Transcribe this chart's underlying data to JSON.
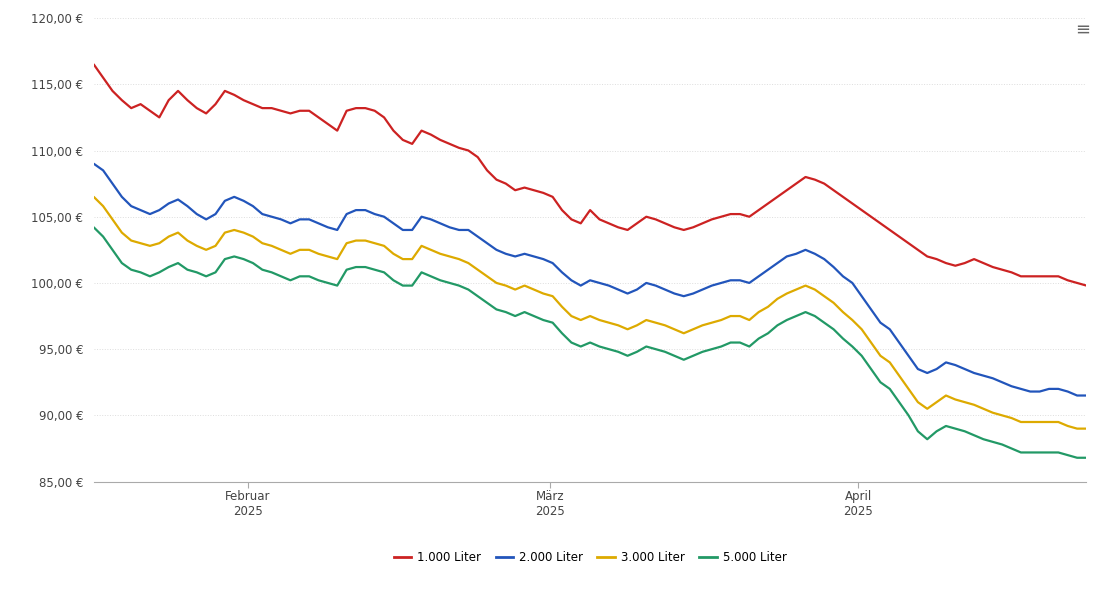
{
  "background_color": "#ffffff",
  "grid_color": "#dddddd",
  "y_min": 85,
  "y_max": 120,
  "y_ticks": [
    85,
    90,
    95,
    100,
    105,
    110,
    115,
    120
  ],
  "x_tick_positions": [
    0.155,
    0.46,
    0.77
  ],
  "x_tick_labels": [
    "Februar\n2025",
    "März\n2025",
    "April\n2025"
  ],
  "series_labels": [
    "1.000 Liter",
    "2.000 Liter",
    "3.000 Liter",
    "5.000 Liter"
  ],
  "series_colors_list": [
    "#cc2222",
    "#2255bb",
    "#ddaa00",
    "#229966"
  ],
  "line_width": 1.6,
  "data_1000": [
    116.5,
    115.5,
    114.5,
    113.8,
    113.2,
    113.5,
    113.0,
    112.5,
    113.8,
    114.5,
    113.8,
    113.2,
    112.8,
    113.5,
    114.5,
    114.2,
    113.8,
    113.5,
    113.2,
    113.2,
    113.0,
    112.8,
    113.0,
    113.0,
    112.5,
    112.0,
    111.5,
    113.0,
    113.2,
    113.2,
    113.0,
    112.5,
    111.5,
    110.8,
    110.5,
    111.5,
    111.2,
    110.8,
    110.5,
    110.2,
    110.0,
    109.5,
    108.5,
    107.8,
    107.5,
    107.0,
    107.2,
    107.0,
    106.8,
    106.5,
    105.5,
    104.8,
    104.5,
    105.5,
    104.8,
    104.5,
    104.2,
    104.0,
    104.5,
    105.0,
    104.8,
    104.5,
    104.2,
    104.0,
    104.2,
    104.5,
    104.8,
    105.0,
    105.2,
    105.2,
    105.0,
    105.5,
    106.0,
    106.5,
    107.0,
    107.5,
    108.0,
    107.8,
    107.5,
    107.0,
    106.5,
    106.0,
    105.5,
    105.0,
    104.5,
    104.0,
    103.5,
    103.0,
    102.5,
    102.0,
    101.8,
    101.5,
    101.3,
    101.5,
    101.8,
    101.5,
    101.2,
    101.0,
    100.8,
    100.5,
    100.5,
    100.5,
    100.5,
    100.5,
    100.2,
    100.0,
    99.8
  ],
  "data_2000": [
    109.0,
    108.5,
    107.5,
    106.5,
    105.8,
    105.5,
    105.2,
    105.5,
    106.0,
    106.3,
    105.8,
    105.2,
    104.8,
    105.2,
    106.2,
    106.5,
    106.2,
    105.8,
    105.2,
    105.0,
    104.8,
    104.5,
    104.8,
    104.8,
    104.5,
    104.2,
    104.0,
    105.2,
    105.5,
    105.5,
    105.2,
    105.0,
    104.5,
    104.0,
    104.0,
    105.0,
    104.8,
    104.5,
    104.2,
    104.0,
    104.0,
    103.5,
    103.0,
    102.5,
    102.2,
    102.0,
    102.2,
    102.0,
    101.8,
    101.5,
    100.8,
    100.2,
    99.8,
    100.2,
    100.0,
    99.8,
    99.5,
    99.2,
    99.5,
    100.0,
    99.8,
    99.5,
    99.2,
    99.0,
    99.2,
    99.5,
    99.8,
    100.0,
    100.2,
    100.2,
    100.0,
    100.5,
    101.0,
    101.5,
    102.0,
    102.2,
    102.5,
    102.2,
    101.8,
    101.2,
    100.5,
    100.0,
    99.0,
    98.0,
    97.0,
    96.5,
    95.5,
    94.5,
    93.5,
    93.2,
    93.5,
    94.0,
    93.8,
    93.5,
    93.2,
    93.0,
    92.8,
    92.5,
    92.2,
    92.0,
    91.8,
    91.8,
    92.0,
    92.0,
    91.8,
    91.5,
    91.5
  ],
  "data_3000": [
    106.5,
    105.8,
    104.8,
    103.8,
    103.2,
    103.0,
    102.8,
    103.0,
    103.5,
    103.8,
    103.2,
    102.8,
    102.5,
    102.8,
    103.8,
    104.0,
    103.8,
    103.5,
    103.0,
    102.8,
    102.5,
    102.2,
    102.5,
    102.5,
    102.2,
    102.0,
    101.8,
    103.0,
    103.2,
    103.2,
    103.0,
    102.8,
    102.2,
    101.8,
    101.8,
    102.8,
    102.5,
    102.2,
    102.0,
    101.8,
    101.5,
    101.0,
    100.5,
    100.0,
    99.8,
    99.5,
    99.8,
    99.5,
    99.2,
    99.0,
    98.2,
    97.5,
    97.2,
    97.5,
    97.2,
    97.0,
    96.8,
    96.5,
    96.8,
    97.2,
    97.0,
    96.8,
    96.5,
    96.2,
    96.5,
    96.8,
    97.0,
    97.2,
    97.5,
    97.5,
    97.2,
    97.8,
    98.2,
    98.8,
    99.2,
    99.5,
    99.8,
    99.5,
    99.0,
    98.5,
    97.8,
    97.2,
    96.5,
    95.5,
    94.5,
    94.0,
    93.0,
    92.0,
    91.0,
    90.5,
    91.0,
    91.5,
    91.2,
    91.0,
    90.8,
    90.5,
    90.2,
    90.0,
    89.8,
    89.5,
    89.5,
    89.5,
    89.5,
    89.5,
    89.2,
    89.0,
    89.0
  ],
  "data_5000": [
    104.2,
    103.5,
    102.5,
    101.5,
    101.0,
    100.8,
    100.5,
    100.8,
    101.2,
    101.5,
    101.0,
    100.8,
    100.5,
    100.8,
    101.8,
    102.0,
    101.8,
    101.5,
    101.0,
    100.8,
    100.5,
    100.2,
    100.5,
    100.5,
    100.2,
    100.0,
    99.8,
    101.0,
    101.2,
    101.2,
    101.0,
    100.8,
    100.2,
    99.8,
    99.8,
    100.8,
    100.5,
    100.2,
    100.0,
    99.8,
    99.5,
    99.0,
    98.5,
    98.0,
    97.8,
    97.5,
    97.8,
    97.5,
    97.2,
    97.0,
    96.2,
    95.5,
    95.2,
    95.5,
    95.2,
    95.0,
    94.8,
    94.5,
    94.8,
    95.2,
    95.0,
    94.8,
    94.5,
    94.2,
    94.5,
    94.8,
    95.0,
    95.2,
    95.5,
    95.5,
    95.2,
    95.8,
    96.2,
    96.8,
    97.2,
    97.5,
    97.8,
    97.5,
    97.0,
    96.5,
    95.8,
    95.2,
    94.5,
    93.5,
    92.5,
    92.0,
    91.0,
    90.0,
    88.8,
    88.2,
    88.8,
    89.2,
    89.0,
    88.8,
    88.5,
    88.2,
    88.0,
    87.8,
    87.5,
    87.2,
    87.2,
    87.2,
    87.2,
    87.2,
    87.0,
    86.8,
    86.8
  ]
}
